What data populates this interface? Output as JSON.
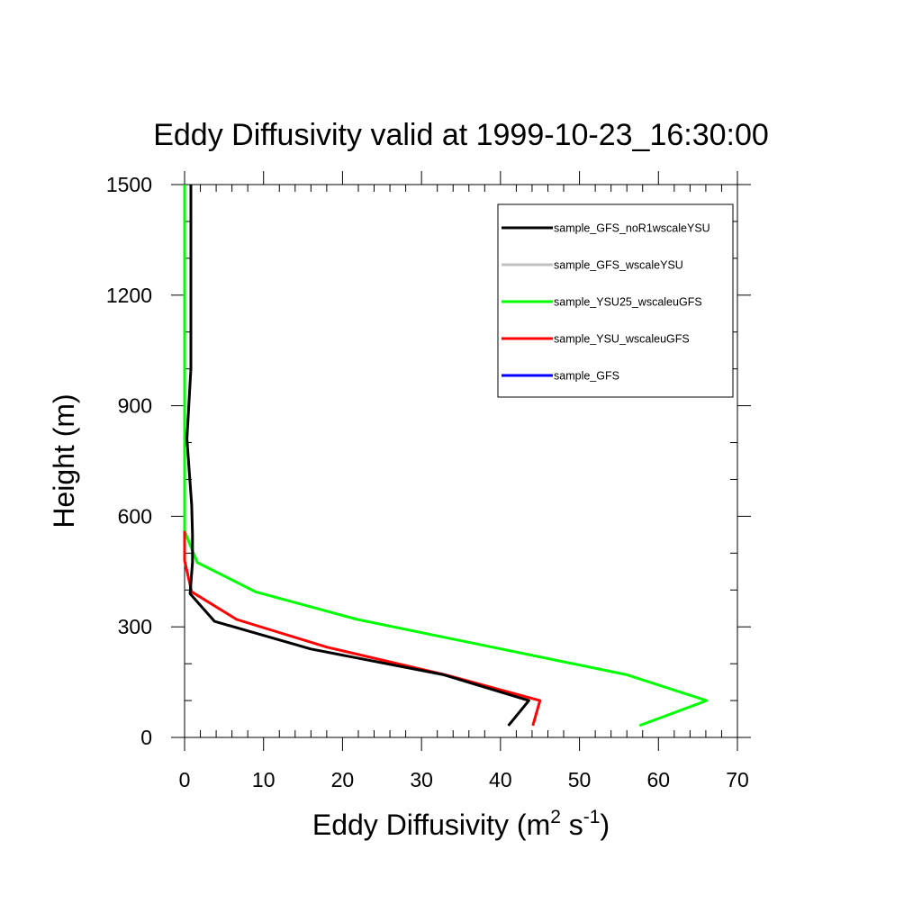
{
  "chart_data": {
    "type": "line",
    "title": "Eddy Diffusivity valid at 1999-10-23_16:30:00",
    "xlabel_main": "Eddy Diffusivity (m",
    "xlabel_sup1": "2",
    "xlabel_mid": " s",
    "xlabel_sup2": "-1",
    "xlabel_end": ")",
    "ylabel": "Height (m)",
    "xlim": [
      0,
      70
    ],
    "ylim": [
      0,
      1500
    ],
    "x_ticks": [
      0,
      10,
      20,
      30,
      40,
      50,
      60,
      70
    ],
    "y_ticks": [
      0,
      300,
      600,
      900,
      1200,
      1500
    ],
    "x_minor_step": 2,
    "y_minor_step": 100,
    "grid": false,
    "legend_position": "top-right",
    "series": [
      {
        "name": "sample_GFS_noR1wscaleYSU",
        "color": "#000000",
        "points": [
          [
            41,
            32
          ],
          [
            43.6,
            100
          ],
          [
            32.8,
            170
          ],
          [
            16,
            240
          ],
          [
            3.8,
            315
          ],
          [
            0.7,
            390
          ],
          [
            1,
            475
          ],
          [
            1,
            550
          ],
          [
            0.9,
            630
          ],
          [
            0.3,
            810
          ],
          [
            0.8,
            1000
          ],
          [
            0.8,
            1500
          ]
        ]
      },
      {
        "name": "sample_GFS_wscaleYSU",
        "color": "#c0c0c0",
        "points": []
      },
      {
        "name": "sample_YSU25_wscaleuGFS",
        "color": "#00ff00",
        "points": [
          [
            57.6,
            32
          ],
          [
            66.1,
            100
          ],
          [
            56,
            170
          ],
          [
            21.9,
            320
          ],
          [
            9,
            395
          ],
          [
            1.6,
            475
          ],
          [
            0,
            560
          ],
          [
            0,
            1500
          ]
        ]
      },
      {
        "name": "sample_YSU_wscaleuGFS",
        "color": "#ff0000",
        "points": [
          [
            44.1,
            32
          ],
          [
            45,
            100
          ],
          [
            33,
            170
          ],
          [
            18,
            245
          ],
          [
            6.6,
            320
          ],
          [
            0.9,
            395
          ],
          [
            0,
            480
          ],
          [
            0,
            560
          ]
        ]
      },
      {
        "name": "sample_GFS",
        "color": "#0000ff",
        "points": []
      }
    ]
  }
}
